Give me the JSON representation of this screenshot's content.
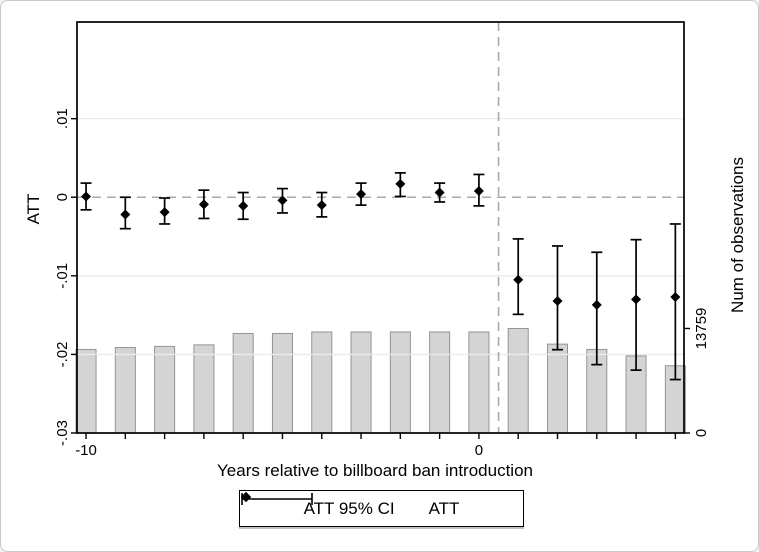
{
  "figure": {
    "x_title": "Years relative to billboard ban introduction",
    "y_left_title": "ATT",
    "y_right_title": "Num of observations",
    "legend": {
      "ci_label": "ATT 95% CI",
      "att_label": "ATT"
    }
  },
  "colors": {
    "bar_fill": "#d4d4d4",
    "bar_stroke": "#949494",
    "gridline": "#eaeaea",
    "dashed_line": "#aaaaaa",
    "marker": "#000000",
    "frame": "#000000",
    "text": "#000000"
  },
  "chart_data": {
    "type": "scatter",
    "title": "",
    "xlabel": "Years relative to billboard ban introduction",
    "ylabel_left": "ATT",
    "ylabel_right": "Num of observations",
    "legend_position": "bottom",
    "grid": true,
    "x": [
      -10,
      -9,
      -8,
      -7,
      -6,
      -5,
      -4,
      -3,
      -2,
      -1,
      0,
      1,
      2,
      3,
      4,
      5
    ],
    "x_range": [
      -10.23,
      5.22
    ],
    "series": [
      {
        "name": "ATT",
        "type": "scatter",
        "marker": "diamond",
        "axis": "left",
        "values": [
          0.0001,
          -0.0022,
          -0.0019,
          -0.0009,
          -0.0011,
          -0.0004,
          -0.001,
          0.0004,
          0.0017,
          0.0006,
          0.0008,
          -0.0105,
          -0.0132,
          -0.0137,
          -0.013,
          -0.0127
        ]
      },
      {
        "name": "ATT 95% CI",
        "type": "errorbar",
        "axis": "left",
        "low": [
          -0.0016,
          -0.004,
          -0.0034,
          -0.0027,
          -0.0028,
          -0.002,
          -0.0025,
          -0.001,
          0.0001,
          -0.0006,
          -0.0011,
          -0.0149,
          -0.0194,
          -0.0213,
          -0.022,
          -0.0232
        ],
        "high": [
          0.0018,
          0.0,
          -0.0001,
          0.0009,
          0.0006,
          0.0011,
          0.0006,
          0.0018,
          0.0031,
          0.0018,
          0.0029,
          -0.0053,
          -0.0062,
          -0.007,
          -0.0054,
          -0.0034
        ]
      },
      {
        "name": "Num of observations",
        "type": "bar",
        "axis": "right",
        "bar_width_x": 0.51,
        "values": [
          11000,
          11250,
          11400,
          11600,
          13100,
          13100,
          13300,
          13300,
          13300,
          13300,
          13300,
          13759,
          11700,
          11000,
          10150,
          8850
        ]
      }
    ],
    "att_axis": {
      "range": [
        -0.03,
        0.0223
      ],
      "ticks": [
        {
          "v": 0.01,
          "label": ".01"
        },
        {
          "v": 0,
          "label": "0"
        },
        {
          "v": -0.01,
          "label": "-.01"
        },
        {
          "v": -0.02,
          "label": "-.02"
        },
        {
          "v": -0.03,
          "label": "-.03"
        }
      ],
      "grid_at": [
        0.01,
        -0.01,
        -0.02
      ]
    },
    "obs_axis": {
      "range": [
        0,
        54100
      ],
      "ticks": [
        {
          "v": 13759,
          "label": "13759"
        },
        {
          "v": 0,
          "label": "0"
        }
      ]
    },
    "x_ticks": [
      -10,
      -9,
      -8,
      -7,
      -6,
      -5,
      -4,
      -3,
      -2,
      -1,
      0,
      1,
      2,
      3,
      4,
      5
    ],
    "x_tick_labels": [
      {
        "v": -10,
        "label": "-10"
      },
      {
        "v": 0,
        "label": "0"
      }
    ],
    "reference_lines": {
      "horizontal_dashed_at": 0,
      "vertical_dashed_at": 0.5
    }
  }
}
